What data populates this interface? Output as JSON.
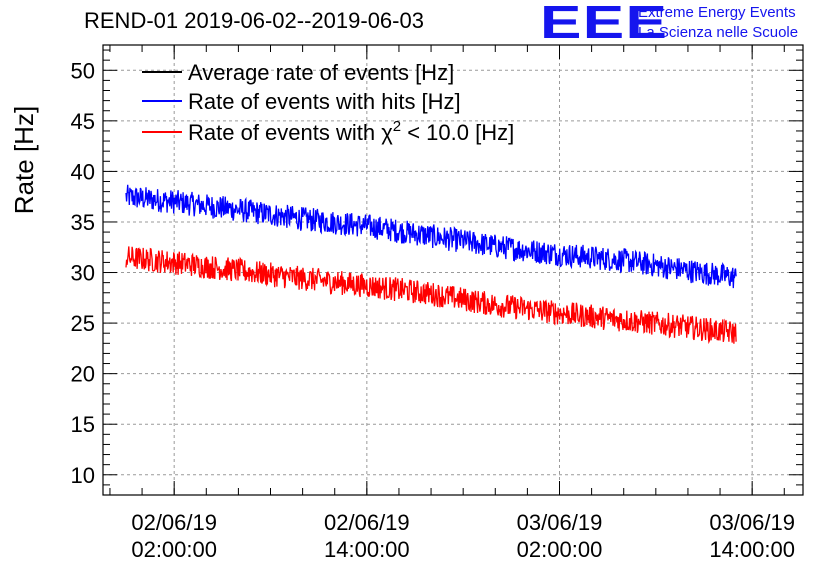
{
  "title": "REND-01 2019-06-02--2019-06-03",
  "logo": {
    "mark": "EEE",
    "line1": "Extreme Energy Events",
    "line2": "La Scienza nelle Scuole"
  },
  "colors": {
    "average": "#000000",
    "hits": "#0000ff",
    "chi2": "#ff0000",
    "logo": "#1515ee",
    "grid": "#9a9a9a"
  },
  "chart_data": {
    "type": "line",
    "ylabel": "Rate [Hz]",
    "xlabel": "",
    "ylim": [
      8,
      52.5
    ],
    "yticks": [
      10,
      15,
      20,
      25,
      30,
      35,
      40,
      45,
      50
    ],
    "xlim": [
      "2019-06-01T21:34:00",
      "2019-06-03T17:10:00"
    ],
    "xticks": [
      {
        "x": "2019-06-02T02:00:00",
        "label1": "02/06/19",
        "label2": "02:00:00"
      },
      {
        "x": "2019-06-02T14:00:00",
        "label1": "02/06/19",
        "label2": "14:00:00"
      },
      {
        "x": "2019-06-03T02:00:00",
        "label1": "03/06/19",
        "label2": "02:00:00"
      },
      {
        "x": "2019-06-03T14:00:00",
        "label1": "03/06/19",
        "label2": "14:00:00"
      }
    ],
    "grid": true,
    "legend_position": "top-left",
    "series": [
      {
        "name": "Average rate of events [Hz]",
        "color": "#000000",
        "noise": 0,
        "x": [],
        "y": []
      },
      {
        "name": "Rate of events with hits [Hz]",
        "color": "#0000ff",
        "noise": 1.2,
        "x": [
          "2019-06-01T23:00:00",
          "2019-06-02T02:00:00",
          "2019-06-02T06:00:00",
          "2019-06-02T10:00:00",
          "2019-06-02T14:00:00",
          "2019-06-02T18:00:00",
          "2019-06-02T22:00:00",
          "2019-06-03T02:00:00",
          "2019-06-03T06:00:00",
          "2019-06-03T10:00:00",
          "2019-06-03T13:00:00"
        ],
        "y": [
          37.5,
          37.0,
          36.2,
          35.3,
          34.6,
          33.6,
          32.6,
          31.8,
          31.2,
          30.2,
          29.5
        ]
      },
      {
        "name": "Rate of events with χ² < 10.0 [Hz]",
        "label_main": "Rate of events with χ",
        "label_sup": "2",
        "label_tail": " < 10.0 [Hz]",
        "color": "#ff0000",
        "noise": 1.2,
        "x": [
          "2019-06-01T23:00:00",
          "2019-06-02T02:00:00",
          "2019-06-02T06:00:00",
          "2019-06-02T10:00:00",
          "2019-06-02T14:00:00",
          "2019-06-02T18:00:00",
          "2019-06-02T22:00:00",
          "2019-06-03T02:00:00",
          "2019-06-03T06:00:00",
          "2019-06-03T10:00:00",
          "2019-06-03T13:00:00"
        ],
        "y": [
          31.5,
          31.0,
          30.2,
          29.4,
          28.7,
          27.9,
          26.8,
          26.0,
          25.3,
          24.6,
          24.0
        ]
      }
    ]
  }
}
